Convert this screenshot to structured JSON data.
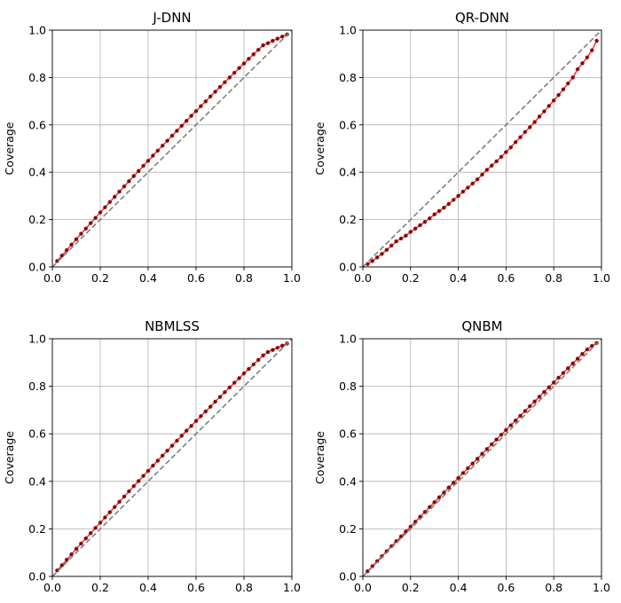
{
  "chart_data": [
    {
      "type": "line",
      "title": "J-DNN",
      "xlabel": "",
      "ylabel": "Coverage",
      "xlim": [
        0,
        1
      ],
      "ylim": [
        0,
        1
      ],
      "xticks": [
        "0.0",
        "0.2",
        "0.4",
        "0.6",
        "0.8",
        "1.0"
      ],
      "yticks": [
        "0.0",
        "0.2",
        "0.4",
        "0.6",
        "0.8",
        "1.0"
      ],
      "grid": true,
      "series": [
        {
          "style": "red-line-with-dark-markers",
          "x": [
            0.02,
            0.04,
            0.06,
            0.08,
            0.1,
            0.12,
            0.14,
            0.16,
            0.18,
            0.2,
            0.22,
            0.24,
            0.26,
            0.28,
            0.3,
            0.32,
            0.34,
            0.36,
            0.38,
            0.4,
            0.42,
            0.44,
            0.46,
            0.48,
            0.5,
            0.52,
            0.54,
            0.56,
            0.58,
            0.6,
            0.62,
            0.64,
            0.66,
            0.68,
            0.7,
            0.72,
            0.74,
            0.76,
            0.78,
            0.8,
            0.82,
            0.84,
            0.86,
            0.88,
            0.9,
            0.92,
            0.94,
            0.96,
            0.98
          ],
          "y": [
            0.025,
            0.048,
            0.071,
            0.094,
            0.117,
            0.14,
            0.162,
            0.185,
            0.207,
            0.23,
            0.252,
            0.274,
            0.296,
            0.318,
            0.34,
            0.362,
            0.384,
            0.405,
            0.427,
            0.448,
            0.47,
            0.491,
            0.512,
            0.533,
            0.554,
            0.575,
            0.596,
            0.617,
            0.638,
            0.658,
            0.679,
            0.699,
            0.72,
            0.74,
            0.76,
            0.78,
            0.8,
            0.82,
            0.84,
            0.859,
            0.879,
            0.898,
            0.917,
            0.936,
            0.945,
            0.955,
            0.964,
            0.973,
            0.982
          ]
        },
        {
          "style": "gray-dashed-diagonal",
          "x": [
            0,
            1
          ],
          "y": [
            0,
            1
          ]
        }
      ]
    },
    {
      "type": "line",
      "title": "QR-DNN",
      "xlabel": "",
      "ylabel": "Coverage",
      "xlim": [
        0,
        1
      ],
      "ylim": [
        0,
        1
      ],
      "xticks": [
        "0.0",
        "0.2",
        "0.4",
        "0.6",
        "0.8",
        "1.0"
      ],
      "yticks": [
        "0.0",
        "0.2",
        "0.4",
        "0.6",
        "0.8",
        "1.0"
      ],
      "grid": true,
      "series": [
        {
          "style": "red-line-with-dark-markers",
          "x": [
            0.02,
            0.04,
            0.06,
            0.08,
            0.1,
            0.12,
            0.14,
            0.16,
            0.18,
            0.2,
            0.22,
            0.24,
            0.26,
            0.28,
            0.3,
            0.32,
            0.34,
            0.36,
            0.38,
            0.4,
            0.42,
            0.44,
            0.46,
            0.48,
            0.5,
            0.52,
            0.54,
            0.56,
            0.58,
            0.6,
            0.62,
            0.64,
            0.66,
            0.68,
            0.7,
            0.72,
            0.74,
            0.76,
            0.78,
            0.8,
            0.82,
            0.84,
            0.86,
            0.88,
            0.9,
            0.92,
            0.94,
            0.96,
            0.98
          ],
          "y": [
            0.012,
            0.025,
            0.04,
            0.055,
            0.072,
            0.09,
            0.108,
            0.12,
            0.132,
            0.148,
            0.162,
            0.176,
            0.19,
            0.205,
            0.222,
            0.236,
            0.25,
            0.266,
            0.283,
            0.3,
            0.318,
            0.335,
            0.352,
            0.37,
            0.39,
            0.41,
            0.428,
            0.446,
            0.465,
            0.485,
            0.505,
            0.527,
            0.548,
            0.57,
            0.59,
            0.612,
            0.635,
            0.657,
            0.68,
            0.703,
            0.726,
            0.75,
            0.775,
            0.8,
            0.835,
            0.86,
            0.885,
            0.915,
            0.955
          ]
        },
        {
          "style": "gray-dashed-diagonal",
          "x": [
            0,
            1
          ],
          "y": [
            0,
            1
          ]
        }
      ]
    },
    {
      "type": "line",
      "title": "NBMLSS",
      "xlabel": "",
      "ylabel": "Coverage",
      "xlim": [
        0,
        1
      ],
      "ylim": [
        0,
        1
      ],
      "xticks": [
        "0.0",
        "0.2",
        "0.4",
        "0.6",
        "0.8",
        "1.0"
      ],
      "yticks": [
        "0.0",
        "0.2",
        "0.4",
        "0.6",
        "0.8",
        "1.0"
      ],
      "grid": true,
      "series": [
        {
          "style": "red-line-with-dark-markers",
          "x": [
            0.02,
            0.04,
            0.06,
            0.08,
            0.1,
            0.12,
            0.14,
            0.16,
            0.18,
            0.2,
            0.22,
            0.24,
            0.26,
            0.28,
            0.3,
            0.32,
            0.34,
            0.36,
            0.38,
            0.4,
            0.42,
            0.44,
            0.46,
            0.48,
            0.5,
            0.52,
            0.54,
            0.56,
            0.58,
            0.6,
            0.62,
            0.64,
            0.66,
            0.68,
            0.7,
            0.72,
            0.74,
            0.76,
            0.78,
            0.8,
            0.82,
            0.84,
            0.86,
            0.88,
            0.9,
            0.92,
            0.94,
            0.96,
            0.98
          ],
          "y": [
            0.025,
            0.047,
            0.07,
            0.093,
            0.116,
            0.138,
            0.16,
            0.182,
            0.204,
            0.226,
            0.248,
            0.27,
            0.292,
            0.314,
            0.336,
            0.358,
            0.38,
            0.401,
            0.423,
            0.444,
            0.466,
            0.487,
            0.508,
            0.529,
            0.55,
            0.571,
            0.592,
            0.613,
            0.633,
            0.654,
            0.674,
            0.694,
            0.714,
            0.735,
            0.755,
            0.775,
            0.795,
            0.815,
            0.834,
            0.854,
            0.873,
            0.892,
            0.911,
            0.93,
            0.944,
            0.953,
            0.962,
            0.971,
            0.98
          ]
        },
        {
          "style": "gray-dashed-diagonal",
          "x": [
            0,
            1
          ],
          "y": [
            0,
            1
          ]
        }
      ]
    },
    {
      "type": "line",
      "title": "QNBM",
      "xlabel": "",
      "ylabel": "Coverage",
      "xlim": [
        0,
        1
      ],
      "ylim": [
        0,
        1
      ],
      "xticks": [
        "0.0",
        "0.2",
        "0.4",
        "0.6",
        "0.8",
        "1.0"
      ],
      "yticks": [
        "0.0",
        "0.2",
        "0.4",
        "0.6",
        "0.8",
        "1.0"
      ],
      "grid": true,
      "series": [
        {
          "style": "red-line-with-dark-markers",
          "x": [
            0.02,
            0.04,
            0.06,
            0.08,
            0.1,
            0.12,
            0.14,
            0.16,
            0.18,
            0.2,
            0.22,
            0.24,
            0.26,
            0.28,
            0.3,
            0.32,
            0.34,
            0.36,
            0.38,
            0.4,
            0.42,
            0.44,
            0.46,
            0.48,
            0.5,
            0.52,
            0.54,
            0.56,
            0.58,
            0.6,
            0.62,
            0.64,
            0.66,
            0.68,
            0.7,
            0.72,
            0.74,
            0.76,
            0.78,
            0.8,
            0.82,
            0.84,
            0.86,
            0.88,
            0.9,
            0.92,
            0.94,
            0.96,
            0.98
          ],
          "y": [
            0.022,
            0.043,
            0.064,
            0.085,
            0.106,
            0.127,
            0.148,
            0.168,
            0.189,
            0.209,
            0.23,
            0.251,
            0.271,
            0.292,
            0.312,
            0.333,
            0.353,
            0.374,
            0.394,
            0.414,
            0.435,
            0.455,
            0.475,
            0.495,
            0.516,
            0.536,
            0.556,
            0.576,
            0.596,
            0.616,
            0.636,
            0.656,
            0.676,
            0.696,
            0.716,
            0.736,
            0.756,
            0.776,
            0.796,
            0.816,
            0.836,
            0.856,
            0.876,
            0.896,
            0.916,
            0.936,
            0.955,
            0.97,
            0.982
          ]
        },
        {
          "style": "gray-dashed-diagonal",
          "x": [
            0,
            1
          ],
          "y": [
            0,
            1
          ]
        }
      ]
    }
  ],
  "colors": {
    "curve_line": "#e0302a",
    "curve_marker": "#7a0a0a",
    "reference_line": "#7f7f7f",
    "grid": "#b0b0b0",
    "axes": "#000000",
    "background": "#ffffff"
  }
}
